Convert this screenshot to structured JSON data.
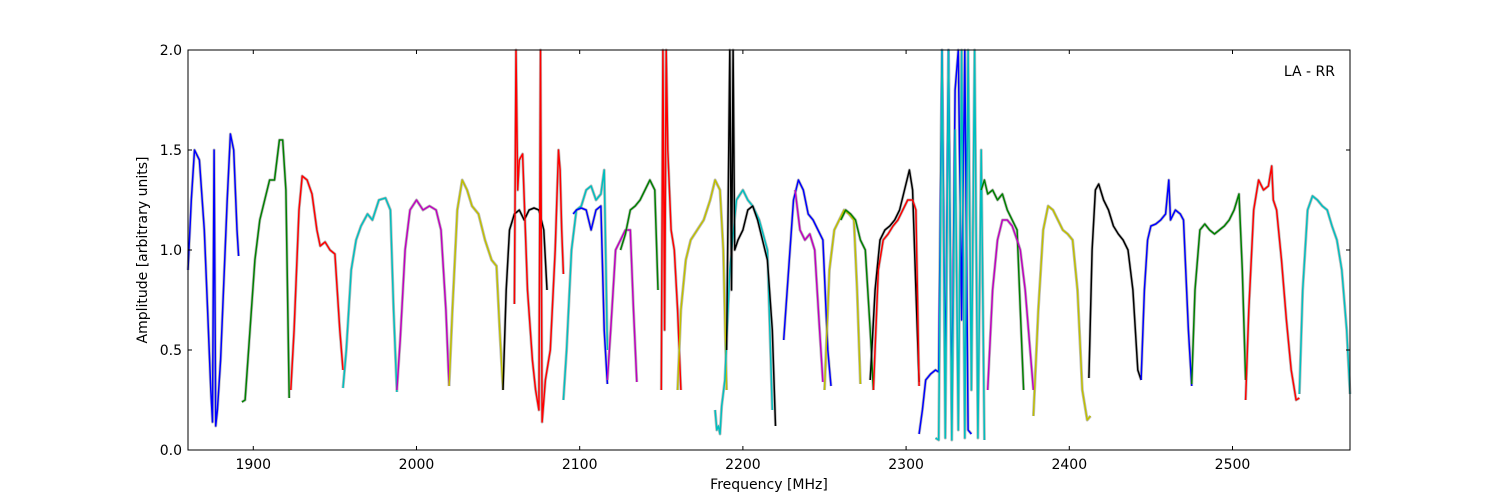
{
  "chart_data": {
    "type": "line",
    "xlabel": "Frequency [MHz]",
    "ylabel": "Amplitude [arbitrary units]",
    "annotation": "LA - RR",
    "xlim": [
      1860,
      2572
    ],
    "ylim": [
      0.0,
      2.0
    ],
    "xticks": [
      {
        "value": 1900,
        "label": "1900"
      },
      {
        "value": 2000,
        "label": "2000"
      },
      {
        "value": 2100,
        "label": "2100"
      },
      {
        "value": 2200,
        "label": "2200"
      },
      {
        "value": 2300,
        "label": "2300"
      },
      {
        "value": 2400,
        "label": "2400"
      },
      {
        "value": 2500,
        "label": "2500"
      }
    ],
    "yticks": [
      {
        "value": 0.0,
        "label": "0.0"
      },
      {
        "value": 0.5,
        "label": "0.5"
      },
      {
        "value": 1.0,
        "label": "1.0"
      },
      {
        "value": 1.5,
        "label": "1.5"
      },
      {
        "value": 2.0,
        "label": "2.0"
      }
    ],
    "grid": false,
    "background_trace_color": "#c0c0c0",
    "series": [
      {
        "color": "#0000ff",
        "x": [
          1860,
          1862,
          1864,
          1867,
          1870,
          1872,
          1874,
          1875,
          1876,
          1877,
          1878,
          1880,
          1882,
          1884,
          1886,
          1888,
          1890,
          1891
        ],
        "y": [
          0.9,
          1.25,
          1.5,
          1.45,
          1.1,
          0.7,
          0.3,
          0.14,
          1.5,
          0.12,
          0.2,
          0.45,
          0.85,
          1.25,
          1.58,
          1.5,
          1.1,
          0.97
        ]
      },
      {
        "color": "#008000",
        "x": [
          1893,
          1895,
          1898,
          1901,
          1904,
          1907,
          1910,
          1913,
          1916,
          1918,
          1920,
          1922
        ],
        "y": [
          0.24,
          0.25,
          0.6,
          0.95,
          1.15,
          1.25,
          1.35,
          1.35,
          1.55,
          1.55,
          1.3,
          0.26
        ]
      },
      {
        "color": "#ff0000",
        "x": [
          1923,
          1925,
          1928,
          1930,
          1933,
          1936,
          1939,
          1941,
          1944,
          1947,
          1950,
          1953,
          1955
        ],
        "y": [
          0.3,
          0.6,
          1.2,
          1.37,
          1.35,
          1.28,
          1.1,
          1.02,
          1.04,
          1.0,
          0.98,
          0.6,
          0.4
        ]
      },
      {
        "color": "#00bfbf",
        "x": [
          1955,
          1957,
          1960,
          1963,
          1966,
          1970,
          1973,
          1977,
          1981,
          1984,
          1986,
          1988
        ],
        "y": [
          0.31,
          0.5,
          0.9,
          1.05,
          1.12,
          1.18,
          1.15,
          1.25,
          1.26,
          1.2,
          0.7,
          0.29
        ]
      },
      {
        "color": "#bf00bf",
        "x": [
          1988,
          1990,
          1993,
          1996,
          2000,
          2004,
          2008,
          2012,
          2015,
          2018,
          2020
        ],
        "y": [
          0.3,
          0.55,
          1.0,
          1.2,
          1.25,
          1.2,
          1.22,
          1.2,
          1.1,
          0.7,
          0.32
        ]
      },
      {
        "color": "#bfbf00",
        "x": [
          2020,
          2022,
          2025,
          2028,
          2031,
          2034,
          2038,
          2042,
          2046,
          2049,
          2051,
          2053
        ],
        "y": [
          0.32,
          0.7,
          1.2,
          1.35,
          1.3,
          1.22,
          1.18,
          1.05,
          0.95,
          0.92,
          0.6,
          0.3
        ]
      },
      {
        "color": "#000000",
        "x": [
          2053,
          2055,
          2057,
          2060,
          2063,
          2066,
          2069,
          2072,
          2075,
          2078,
          2080
        ],
        "y": [
          0.3,
          0.8,
          1.1,
          1.18,
          1.2,
          1.15,
          1.2,
          1.21,
          1.2,
          1.1,
          0.8
        ]
      },
      {
        "color": "#ff0000",
        "x": [
          2060,
          2061,
          2062,
          2063,
          2065,
          2068,
          2071,
          2073,
          2075,
          2076,
          2077,
          2079,
          2082,
          2085,
          2087,
          2088,
          2089,
          2090
        ],
        "y": [
          0.73,
          2.0,
          1.3,
          1.45,
          1.48,
          0.8,
          0.45,
          0.3,
          0.2,
          2.0,
          0.14,
          0.35,
          0.5,
          1.0,
          1.5,
          1.4,
          1.1,
          0.88
        ]
      },
      {
        "color": "#00bfbf",
        "x": [
          2090,
          2092,
          2095,
          2098,
          2101,
          2104,
          2107,
          2110,
          2113,
          2115,
          2117
        ],
        "y": [
          0.25,
          0.5,
          1.0,
          1.2,
          1.22,
          1.3,
          1.32,
          1.25,
          1.28,
          1.4,
          0.5
        ]
      },
      {
        "color": "#0000ff",
        "x": [
          2096,
          2098,
          2101,
          2104,
          2107,
          2110,
          2113,
          2115,
          2117
        ],
        "y": [
          1.18,
          1.2,
          1.21,
          1.2,
          1.1,
          1.2,
          1.22,
          0.6,
          0.33
        ]
      },
      {
        "color": "#bf00bf",
        "x": [
          2117,
          2119,
          2122,
          2125,
          2128,
          2131,
          2133,
          2135
        ],
        "y": [
          0.35,
          0.6,
          1.0,
          1.05,
          1.1,
          1.1,
          0.7,
          0.34
        ]
      },
      {
        "color": "#008000",
        "x": [
          2125,
          2128,
          2131,
          2134,
          2137,
          2140,
          2143,
          2146,
          2148
        ],
        "y": [
          1.0,
          1.08,
          1.2,
          1.22,
          1.25,
          1.3,
          1.35,
          1.3,
          0.8
        ]
      },
      {
        "color": "#ff0000",
        "x": [
          2150,
          2151,
          2152,
          2153,
          2154,
          2156,
          2158,
          2160,
          2162
        ],
        "y": [
          0.3,
          2.0,
          0.6,
          2.0,
          1.5,
          1.1,
          1.0,
          0.7,
          0.3
        ]
      },
      {
        "color": "#bfbf00",
        "x": [
          2160,
          2162,
          2165,
          2168,
          2172,
          2176,
          2180,
          2183,
          2186,
          2188,
          2190
        ],
        "y": [
          0.3,
          0.7,
          0.95,
          1.05,
          1.1,
          1.15,
          1.25,
          1.35,
          1.3,
          1.0,
          0.3
        ]
      },
      {
        "color": "#00bfbf",
        "x": [
          2183,
          2184,
          2185,
          2186,
          2187,
          2189,
          2192,
          2196,
          2200,
          2203,
          2206,
          2210,
          2215,
          2218
        ],
        "y": [
          0.2,
          0.1,
          0.12,
          0.08,
          0.22,
          0.35,
          0.9,
          1.25,
          1.3,
          1.25,
          1.22,
          1.15,
          1.0,
          0.2
        ]
      },
      {
        "color": "#000000",
        "x": [
          2190,
          2192,
          2193,
          2194,
          2195,
          2197,
          2200,
          2203,
          2206,
          2209,
          2212,
          2215,
          2218,
          2220
        ],
        "y": [
          0.5,
          2.0,
          0.8,
          2.0,
          1.0,
          1.05,
          1.1,
          1.2,
          1.22,
          1.15,
          1.05,
          0.95,
          0.6,
          0.12
        ]
      },
      {
        "color": "#0000ff",
        "x": [
          2225,
          2228,
          2231,
          2234,
          2237,
          2240,
          2243,
          2246,
          2249,
          2252,
          2254
        ],
        "y": [
          0.55,
          0.9,
          1.25,
          1.35,
          1.3,
          1.18,
          1.15,
          1.1,
          1.05,
          0.5,
          0.32
        ]
      },
      {
        "color": "#bf00bf",
        "x": [
          2232,
          2235,
          2238,
          2241,
          2244,
          2247,
          2249
        ],
        "y": [
          1.3,
          1.1,
          1.05,
          1.08,
          1.0,
          0.6,
          0.34
        ]
      },
      {
        "color": "#bfbf00",
        "x": [
          2250,
          2253,
          2256,
          2259,
          2262,
          2265,
          2268,
          2270,
          2272
        ],
        "y": [
          0.3,
          0.9,
          1.1,
          1.15,
          1.2,
          1.18,
          1.15,
          0.8,
          0.33
        ]
      },
      {
        "color": "#008000",
        "x": [
          2260,
          2263,
          2266,
          2269,
          2272,
          2275,
          2278,
          2280
        ],
        "y": [
          1.15,
          1.2,
          1.18,
          1.15,
          1.05,
          1.0,
          0.6,
          0.3
        ]
      },
      {
        "color": "#000000",
        "x": [
          2278,
          2281,
          2284,
          2287,
          2290,
          2293,
          2296,
          2299,
          2302,
          2304,
          2306,
          2308
        ],
        "y": [
          0.35,
          0.8,
          1.05,
          1.1,
          1.12,
          1.15,
          1.2,
          1.3,
          1.4,
          1.3,
          0.8,
          0.34
        ]
      },
      {
        "color": "#ff0000",
        "x": [
          2280,
          2283,
          2286,
          2289,
          2292,
          2295,
          2298,
          2301,
          2304,
          2306,
          2308
        ],
        "y": [
          0.3,
          0.9,
          1.05,
          1.08,
          1.12,
          1.15,
          1.2,
          1.25,
          1.25,
          1.2,
          0.32
        ]
      },
      {
        "color": "#0000ff",
        "x": [
          2308,
          2310,
          2312,
          2315,
          2318,
          2320,
          2322,
          2324,
          2326,
          2328,
          2330,
          2332,
          2334,
          2336,
          2338,
          2340
        ],
        "y": [
          0.08,
          0.2,
          0.35,
          0.38,
          0.4,
          0.39,
          2.0,
          0.3,
          2.0,
          0.15,
          1.8,
          2.0,
          0.65,
          2.0,
          0.1,
          0.08
        ]
      },
      {
        "color": "#00bfbf",
        "x": [
          2318,
          2320,
          2322,
          2324,
          2326,
          2328,
          2330,
          2332,
          2334,
          2336,
          2338,
          2340,
          2342,
          2344,
          2346,
          2348
        ],
        "y": [
          0.06,
          0.05,
          2.0,
          0.06,
          2.0,
          0.05,
          1.6,
          0.1,
          2.0,
          0.06,
          2.0,
          0.3,
          2.0,
          0.06,
          1.5,
          0.05
        ]
      },
      {
        "color": "#008000",
        "x": [
          2346,
          2348,
          2350,
          2353,
          2356,
          2359,
          2362,
          2365,
          2368,
          2370,
          2372
        ],
        "y": [
          1.3,
          1.35,
          1.28,
          1.3,
          1.25,
          1.28,
          1.2,
          1.15,
          1.1,
          0.7,
          0.3
        ]
      },
      {
        "color": "#bf00bf",
        "x": [
          2350,
          2353,
          2356,
          2359,
          2362,
          2365,
          2368,
          2370,
          2373,
          2376,
          2378
        ],
        "y": [
          0.3,
          0.8,
          1.05,
          1.15,
          1.15,
          1.12,
          1.05,
          1.0,
          0.8,
          0.5,
          0.3
        ]
      },
      {
        "color": "#bfbf00",
        "x": [
          2378,
          2381,
          2384,
          2387,
          2390,
          2393,
          2396,
          2399,
          2402,
          2405,
          2408,
          2411,
          2413
        ],
        "y": [
          0.17,
          0.7,
          1.1,
          1.22,
          1.2,
          1.15,
          1.1,
          1.08,
          1.05,
          0.8,
          0.3,
          0.15,
          0.17
        ]
      },
      {
        "color": "#000000",
        "x": [
          2412,
          2414,
          2416,
          2418,
          2421,
          2424,
          2427,
          2430,
          2433,
          2436,
          2439,
          2442,
          2444
        ],
        "y": [
          0.36,
          1.0,
          1.3,
          1.33,
          1.25,
          1.2,
          1.12,
          1.08,
          1.05,
          1.0,
          0.8,
          0.4,
          0.35
        ]
      },
      {
        "color": "#0000ff",
        "x": [
          2444,
          2446,
          2448,
          2450,
          2453,
          2456,
          2459,
          2461,
          2462,
          2465,
          2468,
          2470,
          2473,
          2475
        ],
        "y": [
          0.35,
          0.8,
          1.05,
          1.12,
          1.13,
          1.15,
          1.18,
          1.35,
          1.15,
          1.2,
          1.18,
          1.15,
          0.6,
          0.32
        ]
      },
      {
        "color": "#008000",
        "x": [
          2475,
          2477,
          2480,
          2483,
          2486,
          2489,
          2492,
          2495,
          2498,
          2501,
          2504,
          2506,
          2508
        ],
        "y": [
          0.33,
          0.8,
          1.1,
          1.13,
          1.1,
          1.08,
          1.1,
          1.12,
          1.15,
          1.2,
          1.28,
          0.9,
          0.35
        ]
      },
      {
        "color": "#ff0000",
        "x": [
          2508,
          2510,
          2513,
          2516,
          2519,
          2522,
          2524,
          2525,
          2527,
          2530,
          2533,
          2536,
          2539,
          2541
        ],
        "y": [
          0.25,
          0.7,
          1.2,
          1.35,
          1.3,
          1.32,
          1.42,
          1.25,
          1.2,
          0.95,
          0.65,
          0.4,
          0.25,
          0.26
        ]
      },
      {
        "color": "#00bfbf",
        "x": [
          2541,
          2543,
          2546,
          2549,
          2552,
          2555,
          2558,
          2561,
          2564,
          2567,
          2570,
          2572
        ],
        "y": [
          0.28,
          0.8,
          1.2,
          1.27,
          1.25,
          1.22,
          1.2,
          1.12,
          1.05,
          0.9,
          0.6,
          0.28
        ]
      }
    ]
  }
}
